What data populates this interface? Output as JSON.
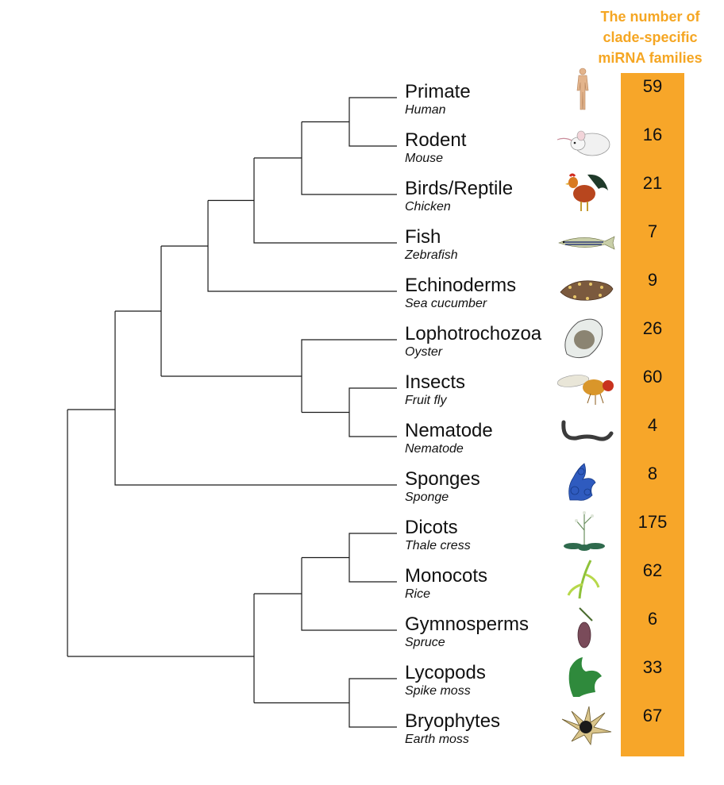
{
  "header": {
    "line1": "The number of",
    "line2": "clade-specific",
    "line3": "miRNA families"
  },
  "colors": {
    "bar": "#f7a629",
    "header_text": "#f5a623",
    "branch": "#1a1a1a"
  },
  "taxa": [
    {
      "clade": "Primate",
      "species": "Human",
      "count": "59",
      "icon": "human-icon"
    },
    {
      "clade": "Rodent",
      "species": "Mouse",
      "count": "16",
      "icon": "mouse-icon"
    },
    {
      "clade": "Birds/Reptile",
      "species": "Chicken",
      "count": "21",
      "icon": "chicken-icon"
    },
    {
      "clade": "Fish",
      "species": "Zebrafish",
      "count": "7",
      "icon": "zebrafish-icon"
    },
    {
      "clade": "Echinoderms",
      "species": "Sea cucumber",
      "count": "9",
      "icon": "sea-cucumber-icon"
    },
    {
      "clade": "Lophotrochozoa",
      "species": "Oyster",
      "count": "26",
      "icon": "oyster-icon"
    },
    {
      "clade": "Insects",
      "species": "Fruit fly",
      "count": "60",
      "icon": "fruit-fly-icon"
    },
    {
      "clade": "Nematode",
      "species": "Nematode",
      "count": "4",
      "icon": "nematode-icon"
    },
    {
      "clade": "Sponges",
      "species": "Sponge",
      "count": "8",
      "icon": "sponge-icon"
    },
    {
      "clade": "Dicots",
      "species": "Thale cress",
      "count": "175",
      "icon": "thale-cress-icon"
    },
    {
      "clade": "Monocots",
      "species": "Rice",
      "count": "62",
      "icon": "rice-icon"
    },
    {
      "clade": "Gymnosperms",
      "species": "Spruce",
      "count": "6",
      "icon": "spruce-icon"
    },
    {
      "clade": "Lycopods",
      "species": "Spike moss",
      "count": "33",
      "icon": "spike-moss-icon"
    },
    {
      "clade": "Bryophytes",
      "species": "Earth moss",
      "count": "67",
      "icon": "earth-moss-icon"
    }
  ]
}
